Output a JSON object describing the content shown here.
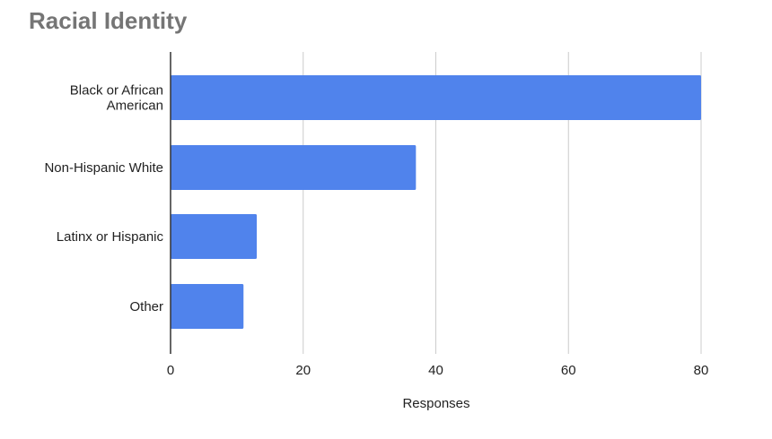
{
  "chart_data": {
    "type": "bar",
    "orientation": "horizontal",
    "title": "Racial Identity",
    "categories": [
      [
        "Black or African",
        "American"
      ],
      [
        "Non-Hispanic White"
      ],
      [
        "Latinx or Hispanic"
      ],
      [
        "Other"
      ]
    ],
    "values": [
      80,
      37,
      13,
      11
    ],
    "xlabel": "Responses",
    "ylabel": "",
    "xlim": [
      0,
      80
    ],
    "x_ticks": [
      "0",
      "20",
      "40",
      "60",
      "80"
    ],
    "grid": "vertical",
    "bar_color": "#5083EC",
    "gridline_color": "#CCCCCC",
    "axis_color": "#333333"
  }
}
